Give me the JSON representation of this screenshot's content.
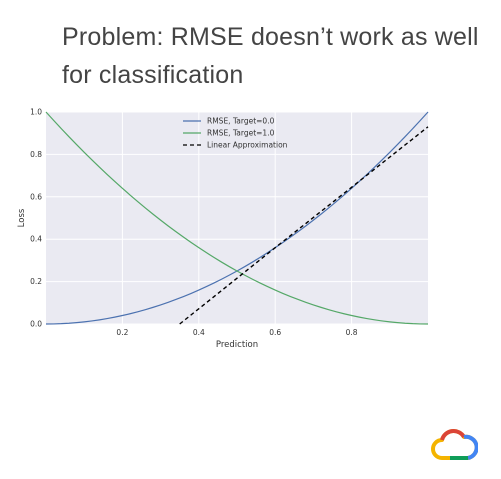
{
  "slide": {
    "title": "Problem: RMSE doesn’t work as well for classification"
  },
  "colors": {
    "plot_background": "#eaeaf2",
    "grid": "#ffffff",
    "series_target0": "#4c72b0",
    "series_target1": "#55a868",
    "series_linear": "#000000"
  },
  "icons": {
    "logo": "cloud-logo-icon"
  },
  "chart_data": {
    "type": "line",
    "title": "",
    "xlabel": "Prediction",
    "ylabel": "Loss",
    "xlim": [
      0.0,
      1.0
    ],
    "ylim": [
      0.0,
      1.0
    ],
    "xticks": [
      "0.2",
      "0.4",
      "0.6",
      "0.8"
    ],
    "xtick_values": [
      0.2,
      0.4,
      0.6,
      0.8
    ],
    "yticks": [
      "0.0",
      "0.2",
      "0.4",
      "0.6",
      "0.8",
      "1.0"
    ],
    "ytick_values": [
      0.0,
      0.2,
      0.4,
      0.6,
      0.8,
      1.0
    ],
    "grid": true,
    "legend_position": "top-center",
    "series": [
      {
        "name": "RMSE, Target=0.0",
        "style": "solid",
        "x": [
          0.0,
          0.1,
          0.2,
          0.3,
          0.4,
          0.5,
          0.6,
          0.7,
          0.8,
          0.9,
          1.0
        ],
        "values": [
          0.0,
          0.01,
          0.04,
          0.09,
          0.16,
          0.25,
          0.36,
          0.49,
          0.64,
          0.81,
          1.0
        ]
      },
      {
        "name": "RMSE, Target=1.0",
        "style": "solid",
        "x": [
          0.0,
          0.1,
          0.2,
          0.3,
          0.4,
          0.5,
          0.6,
          0.7,
          0.8,
          0.9,
          1.0
        ],
        "values": [
          1.0,
          0.81,
          0.64,
          0.49,
          0.36,
          0.25,
          0.16,
          0.09,
          0.04,
          0.01,
          0.0
        ]
      },
      {
        "name": "Linear Approximation",
        "style": "dashed",
        "x": [
          0.35,
          0.6,
          1.0
        ],
        "values": [
          0.0,
          0.36,
          0.93
        ]
      }
    ]
  }
}
